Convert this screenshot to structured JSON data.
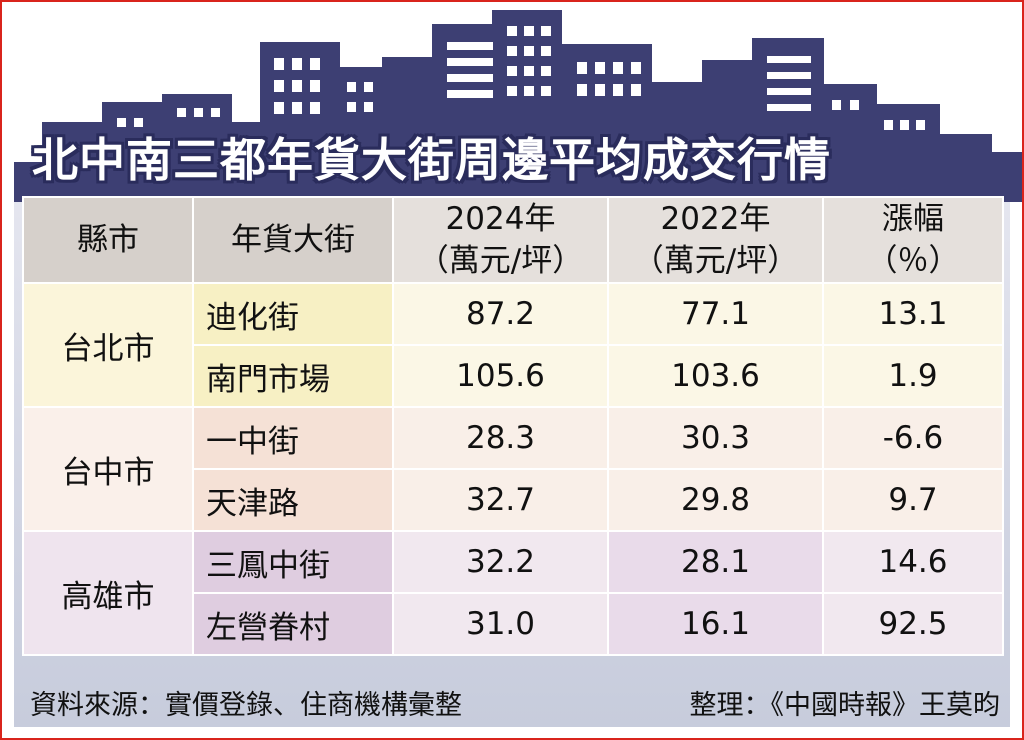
{
  "title": "北中南三都年貨大街周邊平均成交行情",
  "table": {
    "headers": {
      "city": "縣市",
      "street": "年貨大街",
      "y2024_line1": "2024年",
      "y2024_line2": "（萬元/坪）",
      "y2022_line1": "2022年",
      "y2022_line2": "（萬元/坪）",
      "change_line1": "漲幅",
      "change_line2": "（％）"
    },
    "groups": [
      {
        "city": "台北市",
        "rows": [
          {
            "street": "迪化街",
            "y2024": "87.2",
            "y2022": "77.1",
            "change": "13.1"
          },
          {
            "street": "南門市場",
            "y2024": "105.6",
            "y2022": "103.6",
            "change": "1.9"
          }
        ]
      },
      {
        "city": "台中市",
        "rows": [
          {
            "street": "一中街",
            "y2024": "28.3",
            "y2022": "30.3",
            "change": "-6.6"
          },
          {
            "street": "天津路",
            "y2024": "32.7",
            "y2022": "29.8",
            "change": "9.7"
          }
        ]
      },
      {
        "city": "高雄市",
        "rows": [
          {
            "street": "三鳳中街",
            "y2024": "32.2",
            "y2022": "28.1",
            "change": "14.6"
          },
          {
            "street": "左營眷村",
            "y2024": "31.0",
            "y2022": "16.1",
            "change": "92.5"
          }
        ]
      }
    ]
  },
  "footer": {
    "source": "資料來源：實價登錄、住商機構彙整",
    "credit": "整理：《中國時報》王莫昀"
  },
  "colors": {
    "frame": "#d9241c",
    "skyline": "#3d3f73",
    "header_bg": "#e5e0dc",
    "taipei_bg": "#fbf7e6",
    "taichung_bg": "#f9efe8",
    "kaohsiung_bg": "#f1e8ef"
  }
}
